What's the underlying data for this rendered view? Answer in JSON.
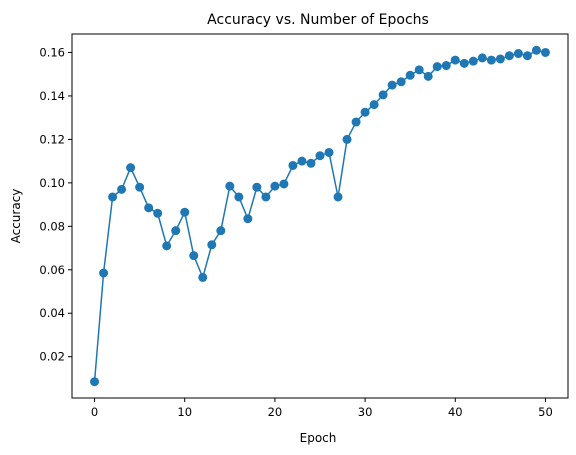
{
  "chart_data": {
    "type": "line",
    "title": "Accuracy vs. Number of Epochs",
    "xlabel": "Epoch",
    "ylabel": "Accuracy",
    "xlim": [
      -2.5,
      52.5
    ],
    "ylim": [
      0.001,
      0.1685
    ],
    "xticks": [
      0,
      10,
      20,
      30,
      40,
      50
    ],
    "yticks": [
      0.02,
      0.04,
      0.06,
      0.08,
      0.1,
      0.12,
      0.14,
      0.16
    ],
    "ytick_labels": [
      "0.02",
      "0.04",
      "0.06",
      "0.08",
      "0.10",
      "0.12",
      "0.14",
      "0.16"
    ],
    "grid": false,
    "marker": "circle",
    "color": "#1f77b4",
    "series": [
      {
        "x": [
          0,
          1,
          2,
          3,
          4,
          5,
          6,
          7,
          8,
          9,
          10,
          11,
          12,
          13,
          14,
          15,
          16,
          17,
          18,
          19,
          20,
          21,
          22,
          23,
          24,
          25,
          26,
          27,
          28,
          29,
          30,
          31,
          32,
          33,
          34,
          35,
          36,
          37,
          38,
          39,
          40,
          41,
          42,
          43,
          44,
          45,
          46,
          47,
          48,
          49,
          50
        ],
        "values": [
          0.0085,
          0.0585,
          0.0935,
          0.097,
          0.107,
          0.098,
          0.0885,
          0.086,
          0.071,
          0.078,
          0.0865,
          0.0665,
          0.0565,
          0.0715,
          0.078,
          0.0985,
          0.0935,
          0.0835,
          0.098,
          0.0935,
          0.0985,
          0.0995,
          0.108,
          0.11,
          0.109,
          0.1125,
          0.114,
          0.0935,
          0.12,
          0.128,
          0.1325,
          0.136,
          0.1405,
          0.145,
          0.1465,
          0.1495,
          0.152,
          0.149,
          0.1535,
          0.154,
          0.1565,
          0.155,
          0.156,
          0.1575,
          0.1565,
          0.157,
          0.1585,
          0.1595,
          0.1585,
          0.161,
          0.16
        ]
      }
    ]
  }
}
